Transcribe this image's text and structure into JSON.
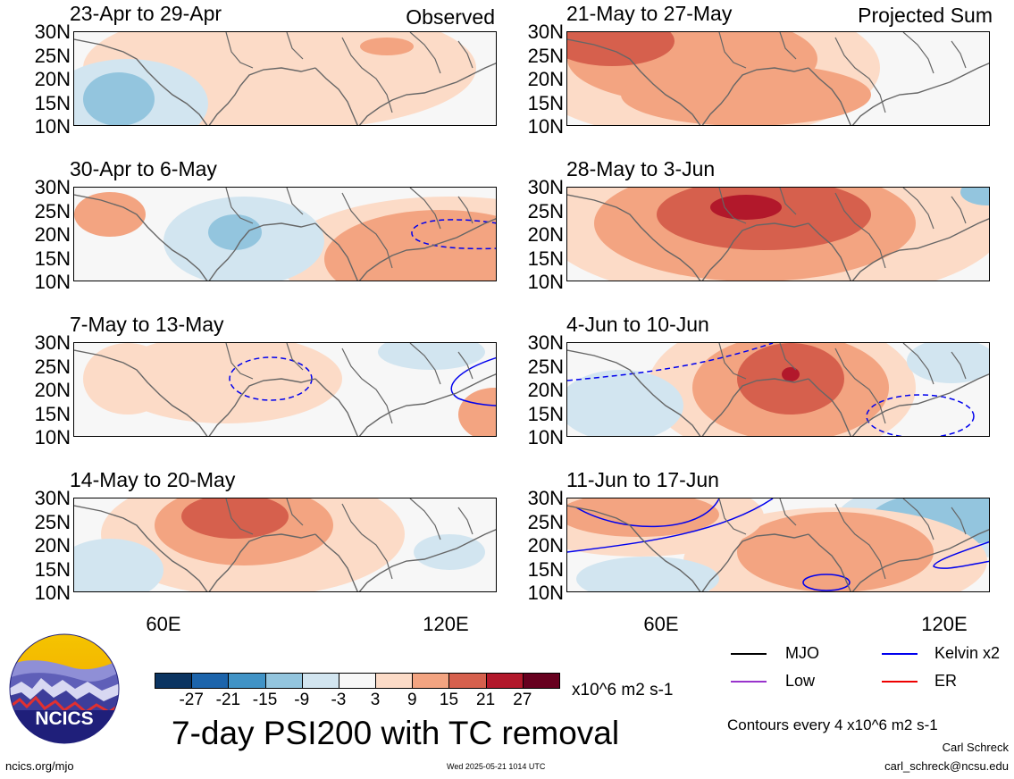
{
  "title": "7-day PSI200 with TC removal",
  "left_tag": "Observed",
  "right_tag": "Projected Sum",
  "panels_left": [
    {
      "title": "23-Apr to 29-Apr"
    },
    {
      "title": "30-Apr to 6-May"
    },
    {
      "title": "7-May to 13-May"
    },
    {
      "title": "14-May to 20-May"
    }
  ],
  "panels_right": [
    {
      "title": "21-May to 27-May"
    },
    {
      "title": "28-May to 3-Jun"
    },
    {
      "title": "4-Jun to 10-Jun"
    },
    {
      "title": "11-Jun to 17-Jun"
    }
  ],
  "lat_labels": [
    "30N",
    "25N",
    "20N",
    "15N",
    "10N"
  ],
  "lon_labels": [
    "60E",
    "120E"
  ],
  "colorbar": {
    "colors": [
      "#0b3461",
      "#1c64ab",
      "#4193c6",
      "#93c5de",
      "#d2e5f0",
      "#f7f7f7",
      "#fcdbc7",
      "#f3a481",
      "#d6604d",
      "#b2182b",
      "#67001f"
    ],
    "ticks": [
      "-27",
      "-21",
      "-15",
      "-9",
      "-3",
      "3",
      "9",
      "15",
      "21",
      "27"
    ],
    "units": "x10^6 m2 s-1"
  },
  "legend": {
    "items": [
      {
        "label": "MJO",
        "color": "#000000"
      },
      {
        "label": "Kelvin x2",
        "color": "#0000ee"
      },
      {
        "label": "Low",
        "color": "#9933cc"
      },
      {
        "label": "ER",
        "color": "#ee0000"
      }
    ],
    "contours_note": "Contours every 4 x10^6 m2 s-1",
    "author": "Carl Schreck",
    "email": "carl_schreck@ncsu.edu"
  },
  "logo": {
    "text": "NCICS"
  },
  "footer": {
    "url": "ncics.org/mjo",
    "timestamp": "Wed 2025-05-21 1014 UTC"
  },
  "chart_data": {
    "type": "heatmap",
    "variable": "7-day PSI200 anomaly",
    "units": "x10^6 m2 s-1",
    "lat_range": [
      10,
      30
    ],
    "lon_range": [
      40,
      130
    ],
    "contour_levels": [
      -27,
      -21,
      -15,
      -9,
      -3,
      3,
      9,
      15,
      21,
      27
    ],
    "grid": false
  }
}
